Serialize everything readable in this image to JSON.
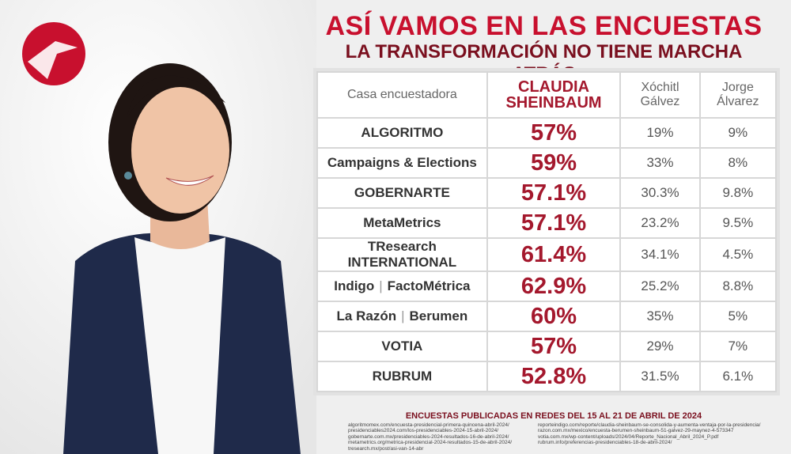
{
  "header": {
    "title": "ASÍ VAMOS EN LAS ENCUESTAS",
    "subtitle": "LA TRANSFORMACIÓN NO TIENE MARCHA ATRÁS"
  },
  "table": {
    "columns": [
      "Casa encuestadora",
      "CLAUDIA SHEINBAUM",
      "Xóchitl Gálvez",
      "Jorge Álvarez"
    ],
    "rows": [
      {
        "logo": [
          "ALGORITMO"
        ],
        "values": [
          "57%",
          "19%",
          "9%"
        ]
      },
      {
        "logo": [
          "Campaigns & Elections"
        ],
        "values": [
          "59%",
          "33%",
          "8%"
        ]
      },
      {
        "logo": [
          "GOBERNARTE"
        ],
        "values": [
          "57.1%",
          "30.3%",
          "9.8%"
        ]
      },
      {
        "logo": [
          "MetaMetrics"
        ],
        "values": [
          "57.1%",
          "23.2%",
          "9.5%"
        ]
      },
      {
        "logo": [
          "TResearch INTERNATIONAL"
        ],
        "values": [
          "61.4%",
          "34.1%",
          "4.5%"
        ]
      },
      {
        "logo": [
          "Indigo",
          "FactoMétrica"
        ],
        "values": [
          "62.9%",
          "25.2%",
          "8.8%"
        ]
      },
      {
        "logo": [
          "La Razón",
          "Berumen"
        ],
        "values": [
          "60%",
          "35%",
          "5%"
        ]
      },
      {
        "logo": [
          "VOTIA"
        ],
        "values": [
          "57%",
          "29%",
          "7%"
        ]
      },
      {
        "logo": [
          "RUBRUM"
        ],
        "values": [
          "52.8%",
          "31.5%",
          "6.1%"
        ]
      }
    ]
  },
  "footer": {
    "note": "ENCUESTAS PUBLICADAS EN REDES DEL 15 AL 21 DE ABRIL DE 2024",
    "sources_left": [
      "algoritmomex.com/encuesta-presidencial-primera-quincena-abril-2024/",
      "presidenciables2024.com/los-presidenciables-2024-15-abril-2024/",
      "gobernarte.com.mx/presidenciables-2024-resultados-16-de-abril-2024/",
      "metametrics.org/metrica-presidencial-2024-resultados-15-de-abril-2024/",
      "tresearch.mx/post/asi-van-14-abr"
    ],
    "sources_right": [
      "reporteindigo.com/reporte/claudia-sheinbaum-se-consolida-y-aumenta-ventaja-por-la-presidencia/",
      "razon.com.mx/mexico/encuesta-berumen-sheinbaum-51-galvez-29-maynez-4-573347",
      "votia.com.mx/wp-content/uploads/2024/04/Reporte_Nacional_Abril_2024_P.pdf",
      "rubrum.info/preferencias-presidenciables-18-de-abril-2024/"
    ]
  }
}
